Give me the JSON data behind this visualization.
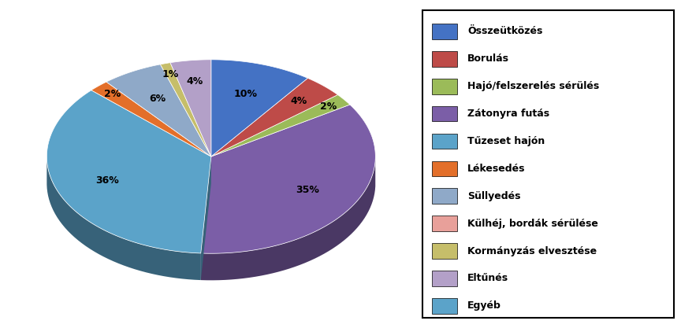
{
  "labels": [
    "Összeütközés",
    "Borulás",
    "Hajó/felszerelés sérülés",
    "Zátonyra futás",
    "Tűzeset hajón",
    "Lékesedés",
    "Süllyedés",
    "Külhéj, bordák sérülése",
    "Kormányzás elvesztése",
    "Eltűnés",
    "Egyéb"
  ],
  "values": [
    10,
    4,
    2,
    35,
    36,
    2,
    6,
    0,
    1,
    4,
    0
  ],
  "colors": [
    "#4472C4",
    "#BE4B48",
    "#9BBB59",
    "#7B5EA7",
    "#5BA3C9",
    "#E36F2A",
    "#8FA9C8",
    "#E8A09A",
    "#C6BE6A",
    "#B3A0C8",
    "#5BA3C9"
  ],
  "pct_labels": [
    "10%",
    "4%",
    "2%",
    "35%",
    "36%",
    "2%",
    "6%",
    "0%",
    "1%",
    "4%",
    "0%"
  ],
  "startangle": 90,
  "legend_labels": [
    "Összeütközés",
    "Borulás",
    "Hajó/felszerelés sérülés",
    "Zátonyra futás",
    "Tűzeset hajón",
    "Lékesedés",
    "Süllyedés",
    "Külhéj, bordák sérülése",
    "Kormányzás elvesztése",
    "Eltűnés",
    "Egyéb"
  ],
  "legend_colors": [
    "#4472C4",
    "#BE4B48",
    "#9BBB59",
    "#7B5EA7",
    "#5BA3C9",
    "#E36F2A",
    "#8FA9C8",
    "#E8A09A",
    "#C6BE6A",
    "#B3A0C8",
    "#5BA3C9"
  ],
  "background_color": "#FFFFFF"
}
